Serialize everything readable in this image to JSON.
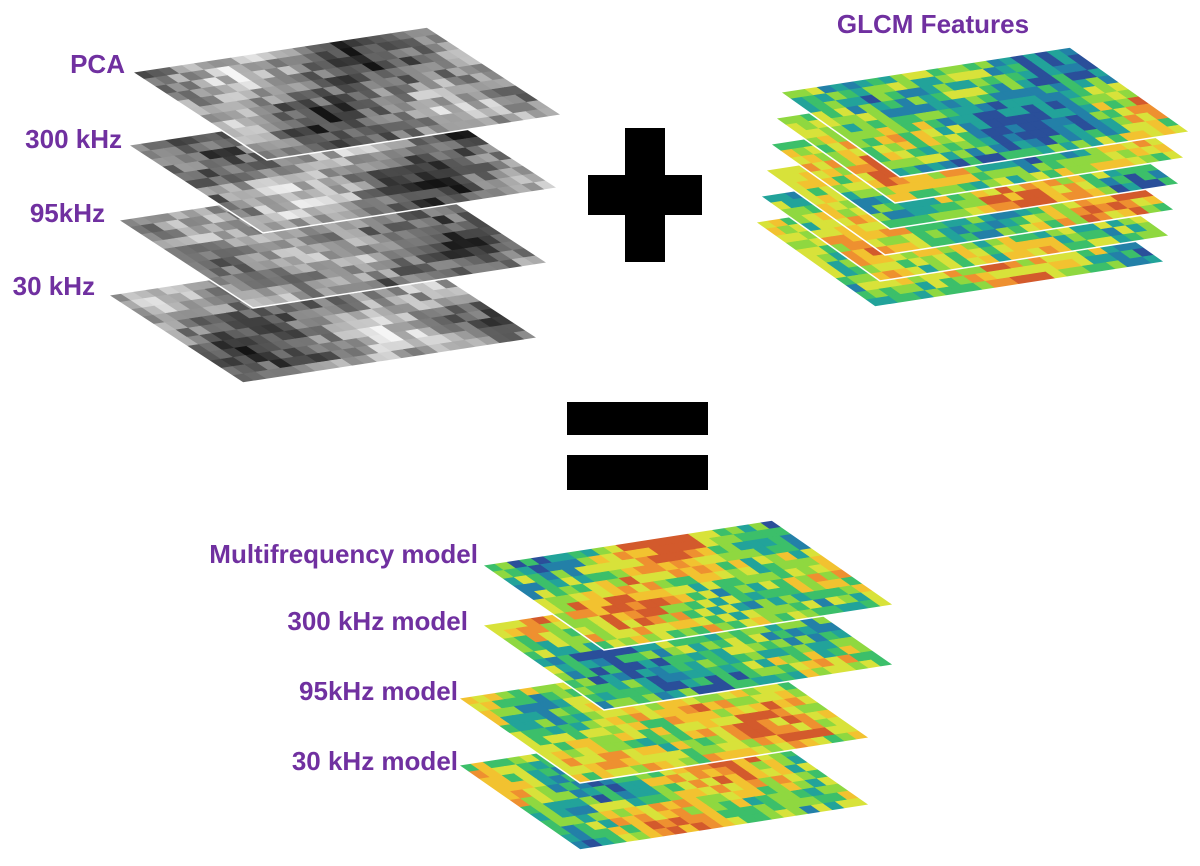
{
  "input_layers": {
    "labels": [
      "PCA",
      "300 kHz",
      "95kHz",
      "30 kHz"
    ]
  },
  "feature_stack": {
    "title": "GLCM Features"
  },
  "output_layers": {
    "labels": [
      "Multifrequency model",
      "300 kHz model",
      "95kHz model",
      "30 kHz model"
    ]
  }
}
